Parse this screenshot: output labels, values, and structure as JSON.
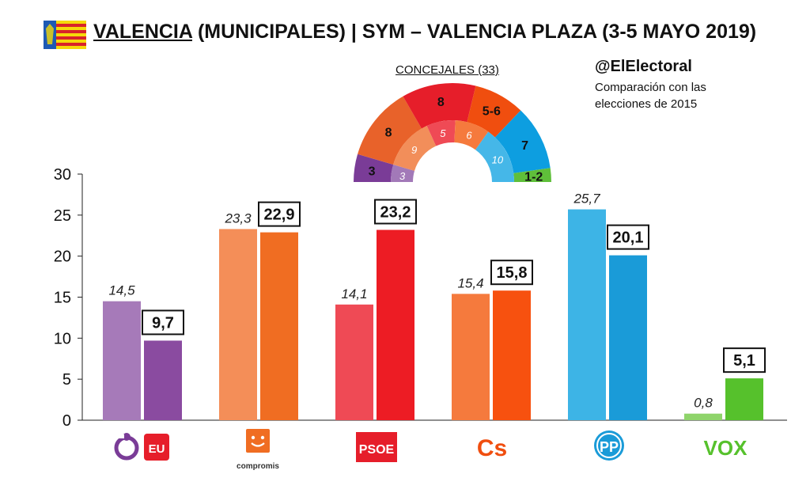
{
  "header": {
    "title_main": "VALENCIA",
    "title_rest": " (MUNICIPALES) | SYM – VALENCIA PLAZA (3-5 MAYO 2019)"
  },
  "source": "@ElElectoral",
  "subtitle": "Comparación con las elecciones de 2015",
  "seats_chart": {
    "title": "CONCEJALES (33)",
    "segments": [
      {
        "party": "Podemos",
        "seats_2019": "3",
        "seats_2015": "3",
        "color_outer": "#7a3c97",
        "color_inner": "#a279b8"
      },
      {
        "party": "Compromis",
        "seats_2019": "8",
        "seats_2015": "9",
        "color_outer": "#e8622a",
        "color_inner": "#f28e5a"
      },
      {
        "party": "PSOE",
        "seats_2019": "8",
        "seats_2015": "5",
        "color_outer": "#e61e2a",
        "color_inner": "#ef4a55"
      },
      {
        "party": "Cs",
        "seats_2019": "5-6",
        "seats_2015": "6",
        "color_outer": "#f04e0f",
        "color_inner": "#f57a3d"
      },
      {
        "party": "PP",
        "seats_2019": "7",
        "seats_2015": "10",
        "color_outer": "#0d9ee0",
        "color_inner": "#45b7e8"
      },
      {
        "party": "Vox",
        "seats_2019": "1-2",
        "seats_2015": "",
        "color_outer": "#5fbf3a",
        "color_inner": "#8fd46b"
      }
    ]
  },
  "chart_data": {
    "type": "bar",
    "categories": [
      "Podemos",
      "Compromis",
      "PSOE",
      "Cs",
      "PP",
      "Vox"
    ],
    "series": [
      {
        "name": "2015",
        "values": [
          14.5,
          23.3,
          14.1,
          15.4,
          25.7,
          0.8
        ],
        "labels": [
          "14,5",
          "23,3",
          "14,1",
          "15,4",
          "25,7",
          "0,8"
        ],
        "colors": [
          "#a67ab9",
          "#f48e58",
          "#ef4a55",
          "#f57a3d",
          "#3db4e6",
          "#8fd46b"
        ]
      },
      {
        "name": "2019",
        "values": [
          9.7,
          22.9,
          23.2,
          15.8,
          20.1,
          5.1
        ],
        "labels": [
          "9,7",
          "22,9",
          "23,2",
          "15,8",
          "20,1",
          "5,1"
        ],
        "colors": [
          "#8a4ba0",
          "#f06d22",
          "#ed1c24",
          "#f7510f",
          "#1a9bd8",
          "#56c12c"
        ]
      }
    ],
    "yticks": [
      "0",
      "5",
      "10",
      "15",
      "20",
      "25",
      "30"
    ],
    "ylim": [
      0,
      30
    ],
    "grid": false,
    "legend": "none"
  },
  "logos": {
    "compromis_text": "compromis",
    "psoe_text": "PSOE",
    "cs_text": "Cs",
    "pp_text": "PP",
    "vox_text": "VOX",
    "eu_text": "EU"
  },
  "icons": [
    "valencia-flag-icon",
    "podemos-logo-icon",
    "eu-logo-icon",
    "compromis-logo-icon",
    "psoe-logo-icon",
    "cs-logo-icon",
    "pp-logo-icon",
    "vox-logo-icon"
  ]
}
